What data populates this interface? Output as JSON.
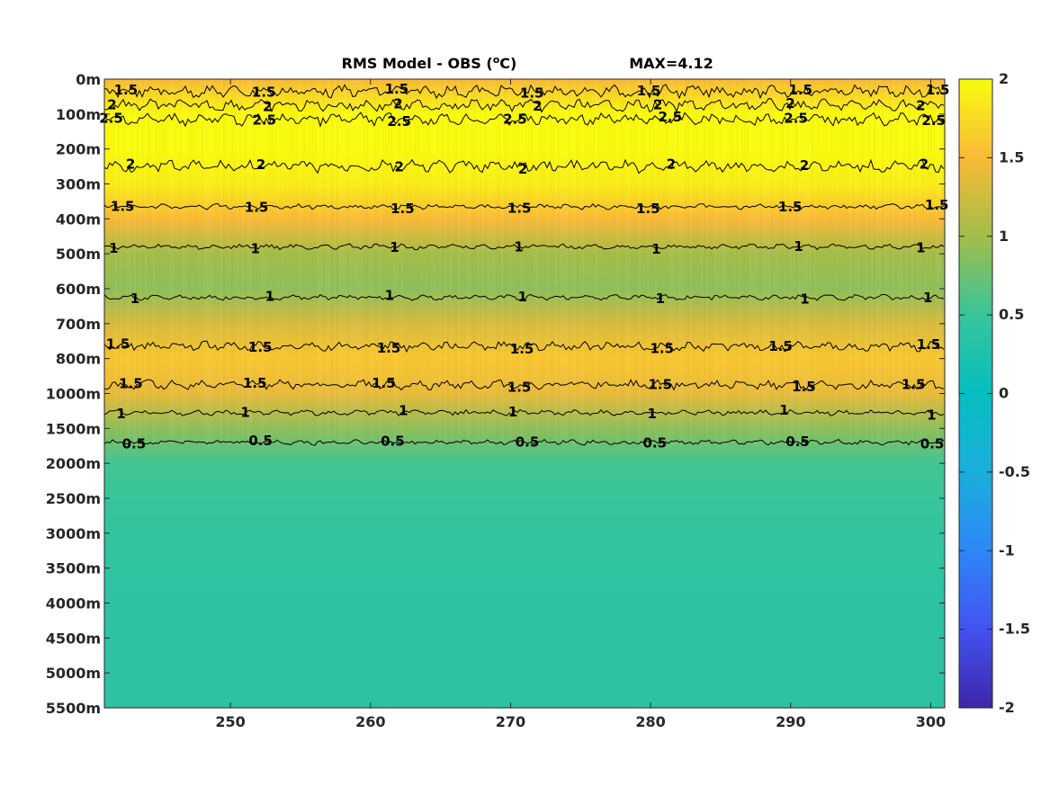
{
  "chart_data": {
    "type": "heatmap",
    "title": "RMS Model - OBS (°C)",
    "title_main": "RMS Model - OBS (",
    "title_unit": "o",
    "title_unit_tail": "C)",
    "max_label": "MAX=4.12",
    "x_ticks": [
      250,
      260,
      270,
      280,
      290,
      300
    ],
    "x_tick_labels": [
      "250",
      "260",
      "270",
      "280",
      "290",
      "300"
    ],
    "xlim": [
      241,
      301
    ],
    "y_tick_labels": [
      "0m",
      "100m",
      "200m",
      "300m",
      "400m",
      "500m",
      "600m",
      "700m",
      "800m",
      "1000m",
      "1500m",
      "2000m",
      "2500m",
      "3000m",
      "3500m",
      "4000m",
      "4500m",
      "5000m",
      "5500m"
    ],
    "depth_profile": {
      "depth_labels": [
        "0m",
        "100m",
        "200m",
        "300m",
        "400m",
        "500m",
        "600m",
        "700m",
        "800m",
        "1000m",
        "1500m",
        "2000m",
        "2500m",
        "3000m",
        "3500m",
        "4000m",
        "4500m",
        "5000m",
        "5500m"
      ],
      "rms_values": [
        1.5,
        2.4,
        2.3,
        1.9,
        1.5,
        1.0,
        0.9,
        1.3,
        1.6,
        1.4,
        0.9,
        0.55,
        0.5,
        0.45,
        0.42,
        0.4,
        0.4,
        0.4,
        0.4
      ]
    },
    "colorbar": {
      "colormap": "parula",
      "range": [
        -2,
        2
      ],
      "ticks": [
        2,
        1.5,
        1,
        0.5,
        0,
        -0.5,
        -1,
        -1.5,
        -2
      ],
      "tick_labels": [
        "2",
        "1.5",
        "1",
        "0.5",
        "0",
        "-0.5",
        "-1",
        "-1.5",
        "-2"
      ]
    },
    "contours": [
      {
        "level": 1.5,
        "depth_index": 0.35
      },
      {
        "level": 2,
        "depth_index": 0.75
      },
      {
        "level": 2.5,
        "depth_index": 1.15
      },
      {
        "level": 2,
        "depth_index": 2.5
      },
      {
        "level": 1.5,
        "depth_index": 3.65
      },
      {
        "level": 1,
        "depth_index": 4.8
      },
      {
        "level": 1,
        "depth_index": 6.25
      },
      {
        "level": 1.5,
        "depth_index": 7.65
      },
      {
        "level": 1.5,
        "depth_index": 8.75
      },
      {
        "level": 1,
        "depth_index": 9.55
      },
      {
        "level": 0.5,
        "depth_index": 10.4
      }
    ]
  }
}
